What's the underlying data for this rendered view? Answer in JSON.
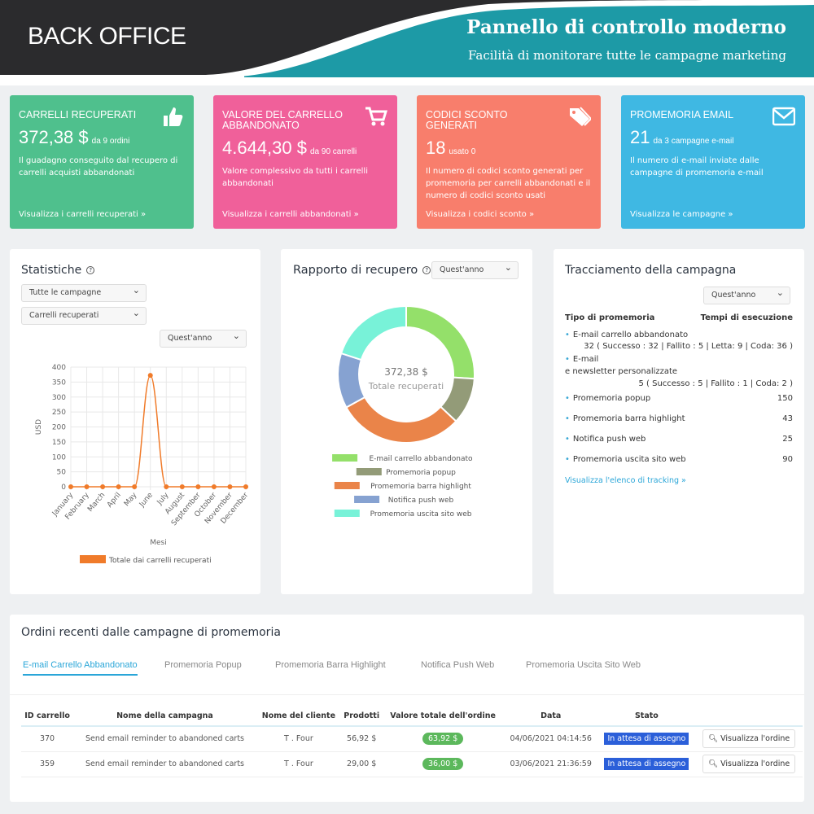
{
  "header": {
    "brand": "BACK OFFICE",
    "title": "Pannello di controllo moderno",
    "subtitle": "Facilità di monitorare tutte le campagne marketing"
  },
  "cards": [
    {
      "title": "CARRELLI RECUPERATI",
      "value": "372,38 $",
      "sub": "da 9 ordini",
      "desc": "Il guadagno conseguito dal recupero di carrelli acquisti abbandonati",
      "link": "Visualizza i carrelli recuperati »",
      "color": "#4fc08d",
      "icon": "thumbs-up-icon"
    },
    {
      "title": "VALORE DEL CARRELLO ABBANDONATO",
      "value": "4.644,30 $",
      "sub": "da 90 carrelli",
      "desc": "Valore complessivo da tutti i carrelli abbandonati",
      "link": "Visualizza i carrelli abbandonati »",
      "color": "#f0609a",
      "icon": "cart-icon"
    },
    {
      "title": "CODICI SCONTO GENERATI",
      "value": "18",
      "sub": "usato 0",
      "desc": "Il numero di codici sconto generati per promemoria per carrelli abbandonati e il numero di codici sconto usati",
      "link": "Visualizza i codici sconto »",
      "color": "#f87e6c",
      "icon": "tag-icon"
    },
    {
      "title": "PROMEMORIA EMAIL",
      "value": "21",
      "sub": "da 3 campagne e-mail",
      "desc": "Il numero di e-mail inviate dalle campagne di promemoria e-mail",
      "link": "Visualizza le campagne »",
      "color": "#3fb8e3",
      "icon": "envelope-icon"
    }
  ],
  "stats": {
    "title": "Statistiche",
    "select1": "Tutte le campagne",
    "select2": "Carrelli recuperati",
    "select3": "Quest'anno"
  },
  "recovery": {
    "title": "Rapporto di recupero",
    "select": "Quest'anno",
    "center_value": "372,38 $",
    "center_label": "Totale recuperati"
  },
  "tracking": {
    "title": "Tracciamento della campagna",
    "select": "Quest'anno",
    "col1": "Tipo di promemoria",
    "col2": "Tempi di esecuzione",
    "rows": [
      {
        "label": "E-mail carrello abbandonato",
        "value": "32 ( Successo : 32 | Fallito : 5 | Letta: 9 | Coda: 36 )"
      },
      {
        "label": "E-mail",
        "label2": "e newsletter personalizzate",
        "value": "5 ( Successo : 5 | Fallito : 1 | Coda: 2 )"
      },
      {
        "label": "Promemoria popup",
        "value": "150"
      },
      {
        "label": "Promemoria barra highlight",
        "value": "43"
      },
      {
        "label": "Notifica push web",
        "value": "25"
      },
      {
        "label": "Promemoria uscita sito web",
        "value": "90"
      }
    ],
    "link": "Visualizza l'elenco di tracking »"
  },
  "orders": {
    "title": "Ordini recenti dalle campagne di promemoria",
    "tabs": [
      "E-mail Carrello Abbandonato",
      "Promemoria Popup",
      "Promemoria Barra Highlight",
      "Notifica Push Web",
      "Promemoria Uscita Sito Web"
    ],
    "active_tab": 0,
    "columns": [
      "ID carrello",
      "Nome della campagna",
      "Nome del cliente",
      "Prodotti",
      "Valore totale dell'ordine",
      "Data",
      "Stato",
      ""
    ],
    "rows": [
      [
        "370",
        "Send email reminder to abandoned carts",
        "T . Four",
        "56,92 $",
        "63,92 $",
        "04/06/2021 04:14:56",
        "In attesa di assegno",
        "Visualizza l'ordine"
      ],
      [
        "359",
        "Send email reminder to abandoned carts",
        "T . Four",
        "29,00 $",
        "36,00 $",
        "03/06/2021 21:36:59",
        "In attesa di assegno",
        "Visualizza l'ordine"
      ]
    ]
  },
  "chart_data": [
    {
      "type": "line",
      "xlabel": "Mesi",
      "ylabel": "USD",
      "ylim": [
        0,
        400
      ],
      "yticks": [
        0,
        50,
        100,
        150,
        200,
        250,
        300,
        350,
        400
      ],
      "grid": true,
      "legend": "bottom",
      "categories": [
        "January",
        "February",
        "March",
        "April",
        "May",
        "June",
        "July",
        "August",
        "September",
        "October",
        "November",
        "December"
      ],
      "series": [
        {
          "name": "Totale dai carrelli recuperati",
          "values": [
            0,
            0,
            0,
            0,
            0,
            372.38,
            0,
            0,
            0,
            0,
            0,
            0
          ],
          "color": "#f07b2a"
        }
      ]
    },
    {
      "type": "pie",
      "donut": true,
      "legend": "bottom",
      "categories": [
        "E-mail carrello abbandonato",
        "Promemoria popup",
        "Promemoria barra highlight",
        "Notifica push web",
        "Promemoria uscita sito web"
      ],
      "values": [
        26,
        11,
        30,
        13,
        20
      ],
      "colors": [
        "#94e06a",
        "#939b78",
        "#ea8449",
        "#86a2d1",
        "#78f2d8"
      ]
    }
  ]
}
